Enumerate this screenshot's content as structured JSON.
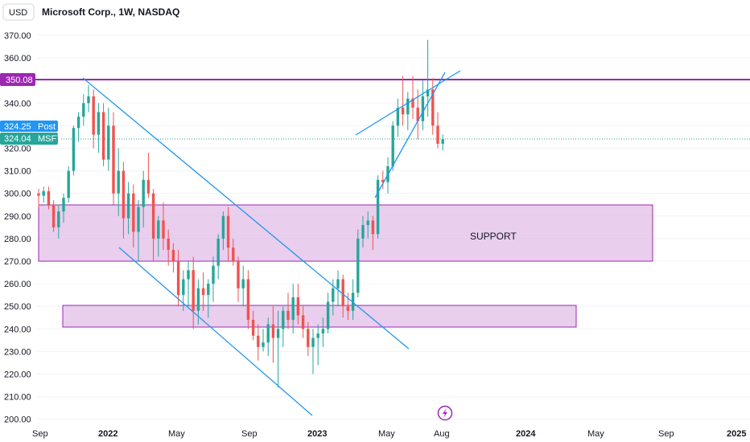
{
  "header": {
    "currency": "USD",
    "title": "Microsoft Corp., 1W, NASDAQ"
  },
  "price_axis": {
    "levels": [
      "370.00",
      "360.00",
      "350.00",
      "340.00",
      "330.00",
      "320.00",
      "310.00",
      "300.00",
      "290.00",
      "280.00",
      "270.00",
      "260.00",
      "250.00",
      "240.00",
      "230.00",
      "220.00",
      "210.00",
      "200.00"
    ]
  },
  "price_tags": {
    "resistance": "350.08",
    "post_value": "324.25",
    "post_label": "Post",
    "last_value": "324.04",
    "last_label": "MSFT"
  },
  "time_axis": {
    "labels": [
      "Sep",
      "2022",
      "May",
      "Sep",
      "2023",
      "May",
      "Aug",
      "2024",
      "May",
      "Sep",
      "2025"
    ]
  },
  "zones": {
    "support_label": "SUPPORT"
  },
  "colors": {
    "up": "#26a69a",
    "down": "#ef5350",
    "trendline": "#2196f3",
    "resistance": "#9c27b0",
    "zone_fill": "#e1bee7",
    "post_tag": "#2196f3",
    "last_tag": "#26a69a"
  },
  "icons": {
    "snapshot": "lightning-icon"
  },
  "chart_data": {
    "type": "candlestick",
    "symbol": "MSFT",
    "interval": "1W",
    "ylim": [
      198,
      375
    ],
    "candles": [
      [
        300,
        302,
        294,
        299
      ],
      [
        299,
        303,
        296,
        301
      ],
      [
        301,
        303,
        293,
        295
      ],
      [
        295,
        297,
        283,
        285
      ],
      [
        285,
        295,
        280,
        292
      ],
      [
        292,
        300,
        287,
        298
      ],
      [
        298,
        312,
        296,
        310
      ],
      [
        310,
        330,
        308,
        329
      ],
      [
        329,
        336,
        323,
        334
      ],
      [
        334,
        344,
        330,
        340
      ],
      [
        340,
        348,
        336,
        343
      ],
      [
        343,
        346,
        320,
        326
      ],
      [
        326,
        340,
        318,
        336
      ],
      [
        336,
        340,
        312,
        315
      ],
      [
        315,
        338,
        310,
        330
      ],
      [
        330,
        336,
        295,
        300
      ],
      [
        300,
        320,
        290,
        310
      ],
      [
        310,
        314,
        280,
        289
      ],
      [
        289,
        305,
        282,
        300
      ],
      [
        300,
        304,
        276,
        283
      ],
      [
        283,
        297,
        270,
        294
      ],
      [
        294,
        310,
        285,
        306
      ],
      [
        306,
        318,
        298,
        300
      ],
      [
        300,
        302,
        270,
        280
      ],
      [
        280,
        290,
        272,
        288
      ],
      [
        288,
        296,
        275,
        280
      ],
      [
        280,
        284,
        268,
        275
      ],
      [
        275,
        278,
        265,
        270
      ],
      [
        270,
        275,
        250,
        255
      ],
      [
        255,
        266,
        248,
        262
      ],
      [
        262,
        270,
        250,
        266
      ],
      [
        266,
        272,
        240,
        248
      ],
      [
        248,
        262,
        242,
        258
      ],
      [
        258,
        265,
        248,
        255
      ],
      [
        255,
        262,
        245,
        260
      ],
      [
        260,
        272,
        252,
        268
      ],
      [
        268,
        282,
        262,
        280
      ],
      [
        280,
        292,
        275,
        290
      ],
      [
        290,
        294,
        270,
        276
      ],
      [
        276,
        280,
        268,
        270
      ],
      [
        270,
        272,
        252,
        258
      ],
      [
        258,
        268,
        250,
        262
      ],
      [
        262,
        266,
        240,
        244
      ],
      [
        244,
        248,
        235,
        237
      ],
      [
        237,
        242,
        226,
        232
      ],
      [
        232,
        240,
        230,
        234
      ],
      [
        234,
        245,
        228,
        242
      ],
      [
        242,
        250,
        225,
        236
      ],
      [
        236,
        248,
        214,
        240
      ],
      [
        240,
        250,
        232,
        248
      ],
      [
        248,
        256,
        240,
        244
      ],
      [
        244,
        260,
        238,
        254
      ],
      [
        254,
        260,
        242,
        246
      ],
      [
        246,
        250,
        236,
        240
      ],
      [
        240,
        243,
        228,
        232
      ],
      [
        232,
        240,
        220,
        236
      ],
      [
        236,
        242,
        224,
        238
      ],
      [
        238,
        245,
        232,
        240
      ],
      [
        240,
        256,
        238,
        252
      ],
      [
        252,
        262,
        246,
        258
      ],
      [
        258,
        266,
        250,
        262
      ],
      [
        262,
        264,
        245,
        250
      ],
      [
        250,
        256,
        244,
        248
      ],
      [
        248,
        262,
        244,
        256
      ],
      [
        256,
        284,
        254,
        280
      ],
      [
        280,
        290,
        276,
        286
      ],
      [
        286,
        292,
        280,
        288
      ],
      [
        288,
        290,
        275,
        282
      ],
      [
        282,
        308,
        280,
        306
      ],
      [
        306,
        310,
        302,
        305
      ],
      [
        305,
        316,
        300,
        312
      ],
      [
        312,
        332,
        310,
        330
      ],
      [
        330,
        342,
        325,
        338
      ],
      [
        338,
        352,
        330,
        335
      ],
      [
        335,
        345,
        328,
        342
      ],
      [
        342,
        352,
        333,
        338
      ],
      [
        338,
        346,
        324,
        332
      ],
      [
        332,
        350,
        328,
        343
      ],
      [
        343,
        368,
        334,
        346
      ],
      [
        346,
        351,
        326,
        330
      ],
      [
        330,
        336,
        320,
        322
      ],
      [
        322,
        326,
        319,
        324
      ]
    ]
  }
}
